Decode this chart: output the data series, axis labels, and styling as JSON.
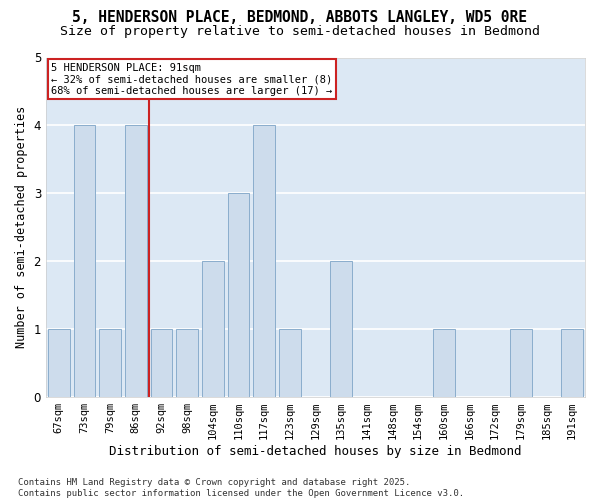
{
  "title1": "5, HENDERSON PLACE, BEDMOND, ABBOTS LANGLEY, WD5 0RE",
  "title2": "Size of property relative to semi-detached houses in Bedmond",
  "xlabel": "Distribution of semi-detached houses by size in Bedmond",
  "ylabel": "Number of semi-detached properties",
  "categories": [
    "67sqm",
    "73sqm",
    "79sqm",
    "86sqm",
    "92sqm",
    "98sqm",
    "104sqm",
    "110sqm",
    "117sqm",
    "123sqm",
    "129sqm",
    "135sqm",
    "141sqm",
    "148sqm",
    "154sqm",
    "160sqm",
    "166sqm",
    "172sqm",
    "179sqm",
    "185sqm",
    "191sqm"
  ],
  "values": [
    1,
    4,
    1,
    4,
    1,
    1,
    2,
    3,
    4,
    1,
    0,
    2,
    0,
    0,
    0,
    1,
    0,
    0,
    1,
    0,
    1
  ],
  "bar_color": "#cddcec",
  "bar_edge_color": "#8aadcc",
  "property_bar_index": 4,
  "vline_x": 3.5,
  "property_label": "5 HENDERSON PLACE: 91sqm",
  "smaller_pct": "32%",
  "smaller_n": 8,
  "larger_pct": "68%",
  "larger_n": 17,
  "vline_color": "#cc2222",
  "ax_background_color": "#dce8f4",
  "fig_background_color": "#ffffff",
  "grid_color": "#ffffff",
  "footnote1": "Contains HM Land Registry data © Crown copyright and database right 2025.",
  "footnote2": "Contains public sector information licensed under the Open Government Licence v3.0.",
  "ylim": [
    0,
    5
  ],
  "title_fontsize": 10.5,
  "subtitle_fontsize": 9.5,
  "xlabel_fontsize": 9,
  "ylabel_fontsize": 8.5,
  "tick_fontsize": 7.5,
  "annotation_fontsize": 7.5,
  "footnote_fontsize": 6.5
}
